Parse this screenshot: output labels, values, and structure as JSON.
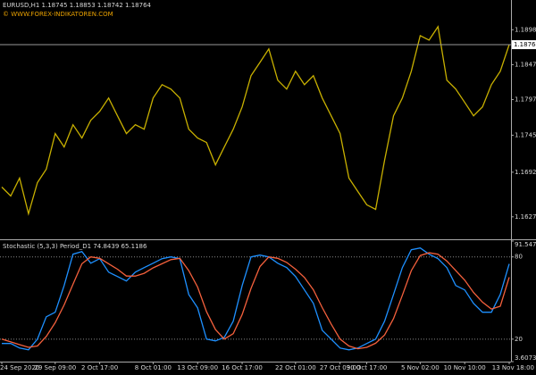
{
  "chart_data": [
    {
      "type": "line",
      "title": "EURUSD,H1  1.18745 1.18853 1.18742 1.18764",
      "subtitle": "© WWW.FOREX-INDIKATOREN.COM",
      "color": "#c8b000",
      "values": [
        1.16705,
        1.16576,
        1.16834,
        1.16319,
        1.1677,
        1.16963,
        1.17478,
        1.17285,
        1.17607,
        1.17414,
        1.17671,
        1.178,
        1.17993,
        1.17736,
        1.17478,
        1.17607,
        1.17542,
        1.17993,
        1.18186,
        1.18122,
        1.17993,
        1.17542,
        1.17414,
        1.17349,
        1.17027,
        1.17285,
        1.17542,
        1.17864,
        1.18315,
        1.18508,
        1.18702,
        1.18251,
        1.18122,
        1.1838,
        1.18186,
        1.18315,
        1.17993,
        1.17736,
        1.17478,
        1.16834,
        1.16641,
        1.16448,
        1.16383,
        1.17092,
        1.17736,
        1.17993,
        1.1838,
        1.18895,
        1.1883,
        1.19024,
        1.18251,
        1.18122,
        1.17929,
        1.17736,
        1.17864,
        1.18186,
        1.1838,
        1.18764
      ],
      "ylim": [
        1.1595,
        1.1941
      ],
      "yticks": [
        {
          "value": 1.1898,
          "label": "1.18980"
        },
        {
          "value": 1.18475,
          "label": "1.18475"
        },
        {
          "value": 1.1797,
          "label": "1.17970"
        },
        {
          "value": 1.17455,
          "label": "1.17455"
        },
        {
          "value": 1.1692,
          "label": "1.16920"
        },
        {
          "value": 1.16275,
          "label": "1.16275"
        }
      ],
      "current_price": {
        "value": 1.18764,
        "label": "1.18764"
      }
    },
    {
      "type": "line",
      "title": "Stochastic (5,3,3) Period_D1 74.8439 65.1186",
      "categories": [
        "24 Sep 2020",
        null,
        null,
        null,
        null,
        null,
        "29 Sep 09:00",
        null,
        null,
        null,
        null,
        "2 Oct 17:00",
        null,
        null,
        null,
        null,
        null,
        "8 Oct 01:00",
        null,
        null,
        null,
        null,
        "13 Oct 09:00",
        null,
        null,
        null,
        null,
        "16 Oct 17:00",
        null,
        null,
        null,
        null,
        null,
        "22 Oct 01:00",
        null,
        null,
        null,
        null,
        "27 Oct 09:00",
        null,
        null,
        "30 Oct 17:00",
        null,
        null,
        null,
        null,
        null,
        "5 Nov 02:00",
        null,
        null,
        null,
        null,
        "10 Nov 10:00",
        null,
        null,
        null,
        null,
        "13 Nov 18:00"
      ],
      "series": [
        {
          "color": "#1e90ff",
          "values": [
            16.8,
            16.8,
            13.5,
            12.2,
            20,
            36.3,
            39.6,
            59.1,
            82,
            83.9,
            75.4,
            78.7,
            68.9,
            65.7,
            62.4,
            68.9,
            72.2,
            75.4,
            78.7,
            80,
            78.7,
            52.6,
            42.8,
            20,
            18.7,
            21.3,
            33.1,
            59.1,
            80,
            81.3,
            80,
            75.4,
            72.2,
            65.7,
            55.9,
            46.1,
            26.5,
            20,
            13.5,
            12.2,
            13.5,
            16.8,
            20,
            33.1,
            52.6,
            72.2,
            85.2,
            86.5,
            82,
            78.7,
            72.2,
            59.1,
            55.9,
            46.1,
            39.6,
            39.6,
            52.6,
            74.84
          ]
        },
        {
          "color": "#f4603c",
          "values": [
            20,
            18,
            16,
            14,
            15,
            22,
            32,
            45,
            60,
            75,
            80,
            79,
            75,
            71,
            66,
            66,
            68,
            72,
            75,
            78,
            79,
            70,
            58,
            40,
            27,
            20,
            24,
            38,
            57,
            73,
            80,
            79,
            76,
            71,
            65,
            56,
            43,
            31,
            20,
            15,
            13,
            14,
            17,
            23,
            35,
            52,
            70,
            81,
            83,
            82,
            77,
            70,
            63,
            54,
            47,
            42,
            44,
            65.12
          ]
        }
      ],
      "ylim": [
        3.6073,
        91.5474
      ],
      "yticks": [
        91.5474,
        80,
        20,
        3.6073
      ],
      "levels": [
        80,
        20
      ]
    }
  ]
}
